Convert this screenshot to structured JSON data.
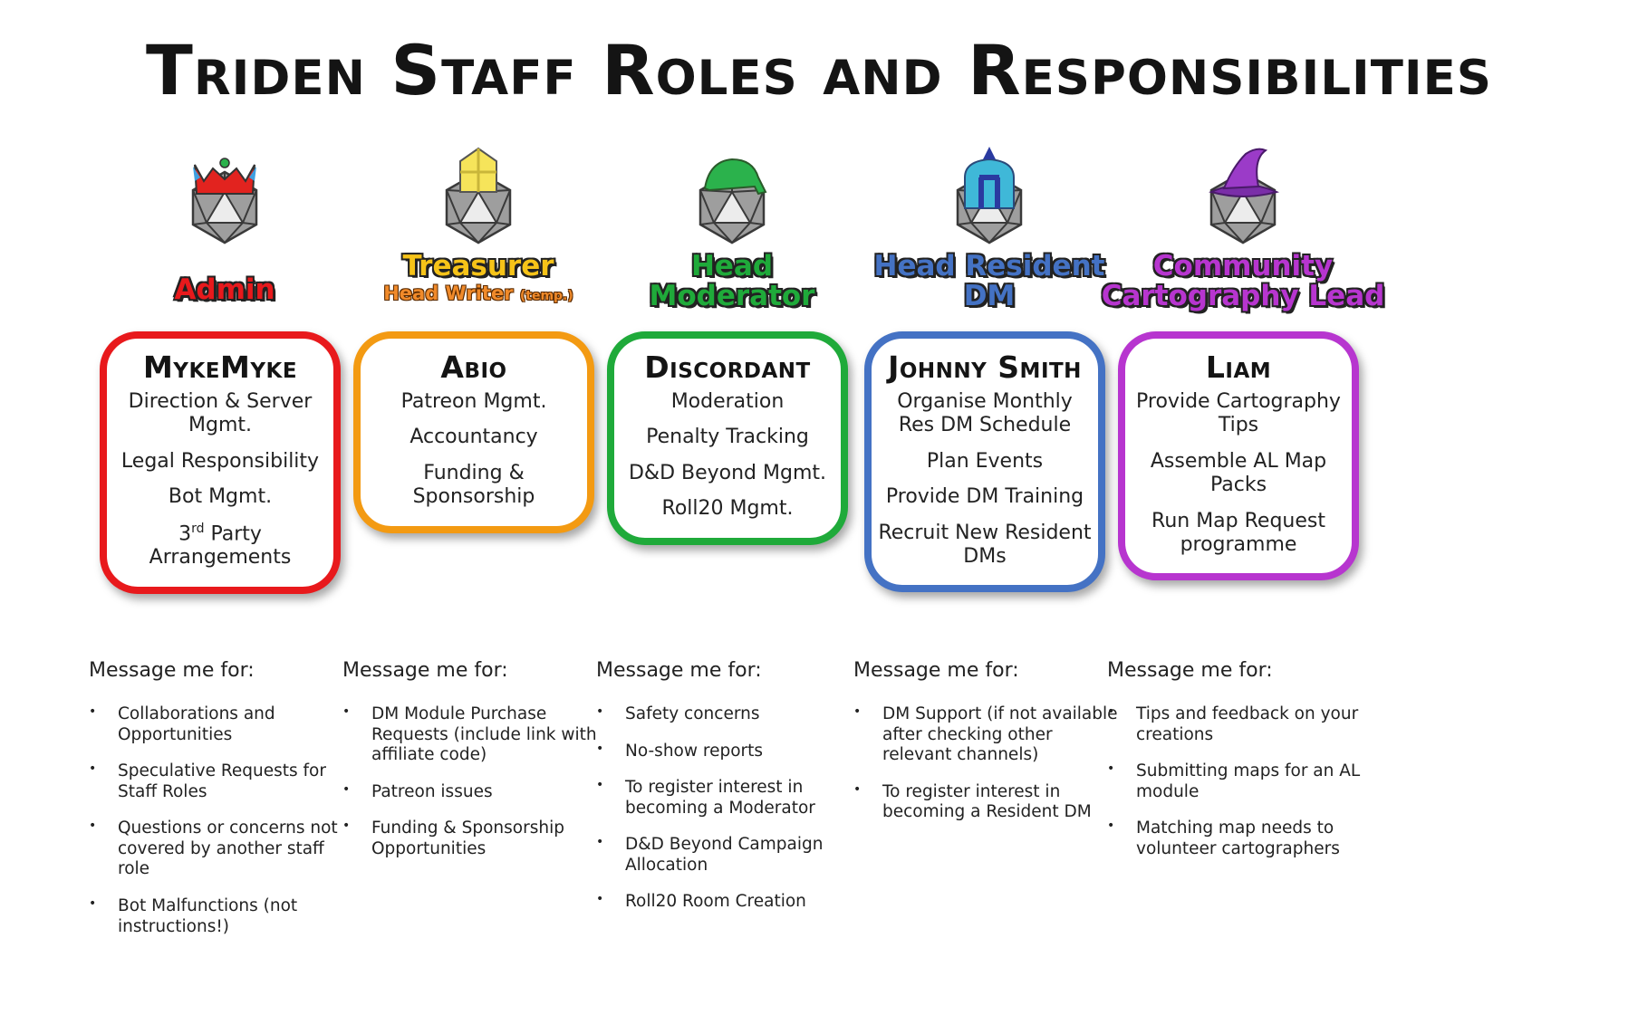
{
  "title": "Triden Staff Roles and Responsibilities",
  "message_heading": "Message me for:",
  "columns": [
    {
      "role": [
        "Admin"
      ],
      "role_sub": "",
      "role_sub_small": "",
      "color": "#e8191c",
      "hat_color": "#e2231f",
      "name": "MykeMyke",
      "duties": [
        "Direction & Server Mgmt.",
        "Legal Responsibility",
        "Bot Mgmt.",
        "3rd Party Arrangements"
      ],
      "messages": [
        "Collaborations and Opportunities",
        "Speculative Requests for Staff Roles",
        "Questions or concerns not covered by another staff role",
        "Bot Malfunctions (not instructions!)"
      ]
    },
    {
      "role": [
        "Treasurer"
      ],
      "role_sub": "Head Writer",
      "role_sub_small": "(temp.)",
      "color": "#f39a12",
      "hat_color": "#f6e45a",
      "name": "Abio",
      "duties": [
        "Patreon Mgmt.",
        "Accountancy",
        "Funding & Sponsorship"
      ],
      "messages": [
        "DM Module Purchase Requests (include link with affiliate code)",
        "Patreon issues",
        "Funding & Sponsorship Opportunities"
      ]
    },
    {
      "role": [
        "Head",
        "Moderator"
      ],
      "role_sub": "",
      "role_sub_small": "",
      "color": "#1faa3a",
      "hat_color": "#2bb24c",
      "name": "Discordant",
      "duties": [
        "Moderation",
        "Penalty Tracking",
        "D&D Beyond Mgmt.",
        "Roll20 Mgmt."
      ],
      "messages": [
        "Safety concerns",
        "No-show reports",
        "To register interest in becoming a Moderator",
        "D&D Beyond Campaign Allocation",
        "Roll20 Room Creation"
      ]
    },
    {
      "role": [
        "Head Resident",
        "DM"
      ],
      "role_sub": "",
      "role_sub_small": "",
      "color": "#4472c4",
      "hat_color": "#3fb8d8",
      "name": "Johnny Smith",
      "duties": [
        "Organise Monthly Res DM Schedule",
        "Plan Events",
        "Provide DM Training",
        "Recruit New Resident DMs"
      ],
      "messages": [
        "DM Support (if not available after checking other relevant channels)",
        "To register interest in becoming a Resident DM"
      ]
    },
    {
      "role": [
        "Community",
        "Cartography Lead"
      ],
      "role_sub": "",
      "role_sub_small": "",
      "color": "#b735cf",
      "hat_color": "#9b3bc8",
      "name": "Liam",
      "duties": [
        "Provide Cartography Tips",
        "Assemble AL Map Packs",
        "Run Map Request programme"
      ],
      "messages": [
        "Tips and feedback on your creations",
        "Submitting maps for an AL module",
        "Matching map needs to volunteer cartographers"
      ]
    }
  ]
}
